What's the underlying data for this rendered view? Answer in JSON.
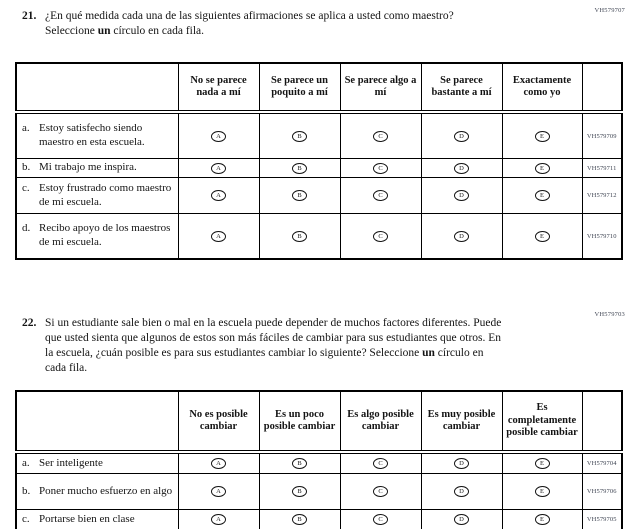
{
  "questions": [
    {
      "number": "21.",
      "code": "VH579707",
      "text_before": "¿En qué medida cada una de las siguientes afirmaciones se aplica a usted como maestro? Seleccione ",
      "text_bold": "un",
      "text_after": " círculo en cada fila.",
      "columns": [
        "No se parece nada a mí",
        "Se parece un poquito a mí",
        "Se parece algo a mí",
        "Se parece bastante a mí",
        "Exactamente como yo"
      ],
      "options": [
        "A",
        "B",
        "C",
        "D",
        "E"
      ],
      "rows": [
        {
          "letter": "a.",
          "text": "Estoy satisfecho siendo maestro en esta escuela.",
          "code": "VH579709"
        },
        {
          "letter": "b.",
          "text": "Mi trabajo me inspira.",
          "code": "VH579711"
        },
        {
          "letter": "c.",
          "text": "Estoy frustrado como maestro de mi escuela.",
          "code": "VH579712"
        },
        {
          "letter": "d.",
          "text": "Recibo apoyo de los maestros de mi escuela.",
          "code": "VH579710"
        }
      ]
    },
    {
      "number": "22.",
      "code": "VH579703",
      "text_before": "Si un estudiante sale bien o mal en la escuela puede depender de muchos factores diferentes. Puede que usted sienta que algunos de estos son más fáciles de cambiar para sus estudiantes que otros. En la escuela, ¿cuán posible es para sus estudiantes cambiar lo siguiente? Seleccione ",
      "text_bold": "un",
      "text_after": " círculo en cada fila.",
      "columns": [
        "No es posible cambiar",
        "Es un poco posible cambiar",
        "Es algo posible cambiar",
        "Es muy posible cambiar",
        "Es completamente posible cambiar"
      ],
      "options": [
        "A",
        "B",
        "C",
        "D",
        "E"
      ],
      "rows": [
        {
          "letter": "a.",
          "text": "Ser inteligente",
          "code": "VH579704"
        },
        {
          "letter": "b.",
          "text": "Poner mucho esfuerzo en algo",
          "code": "VH579706"
        },
        {
          "letter": "c.",
          "text": "Portarse bien en clase",
          "code": "VH579705"
        }
      ]
    }
  ]
}
